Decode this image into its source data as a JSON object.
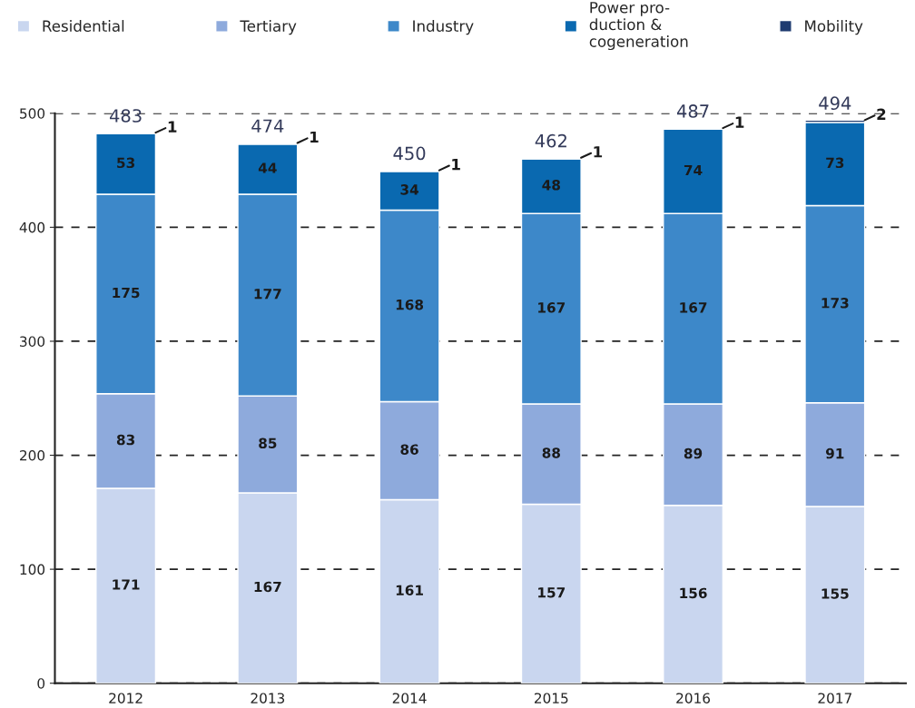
{
  "chart_data": {
    "type": "bar",
    "stacked": true,
    "categories": [
      "2012",
      "2013",
      "2014",
      "2015",
      "2016",
      "2017"
    ],
    "series": [
      {
        "name": "Residential",
        "color": "#c9d6ef",
        "values": [
          171,
          167,
          161,
          157,
          156,
          155
        ]
      },
      {
        "name": "Tertiary",
        "color": "#8eaadc",
        "values": [
          83,
          85,
          86,
          88,
          89,
          91
        ]
      },
      {
        "name": "Industry",
        "color": "#3d88c9",
        "values": [
          175,
          177,
          168,
          167,
          167,
          173
        ]
      },
      {
        "name": "Power pro-\nduction &\ncogeneration",
        "color": "#0a69b0",
        "values": [
          53,
          44,
          34,
          48,
          74,
          73
        ]
      },
      {
        "name": "Mobility",
        "color": "#1f3b70",
        "values": [
          1,
          1,
          1,
          1,
          1,
          2
        ]
      }
    ],
    "totals": [
      "483",
      "474",
      "450",
      "462",
      "487",
      "494"
    ],
    "data_labels": true,
    "ylim": [
      0,
      500
    ],
    "yticks": [
      0,
      100,
      200,
      300,
      400,
      500
    ],
    "grid": "y",
    "legend": "top"
  }
}
